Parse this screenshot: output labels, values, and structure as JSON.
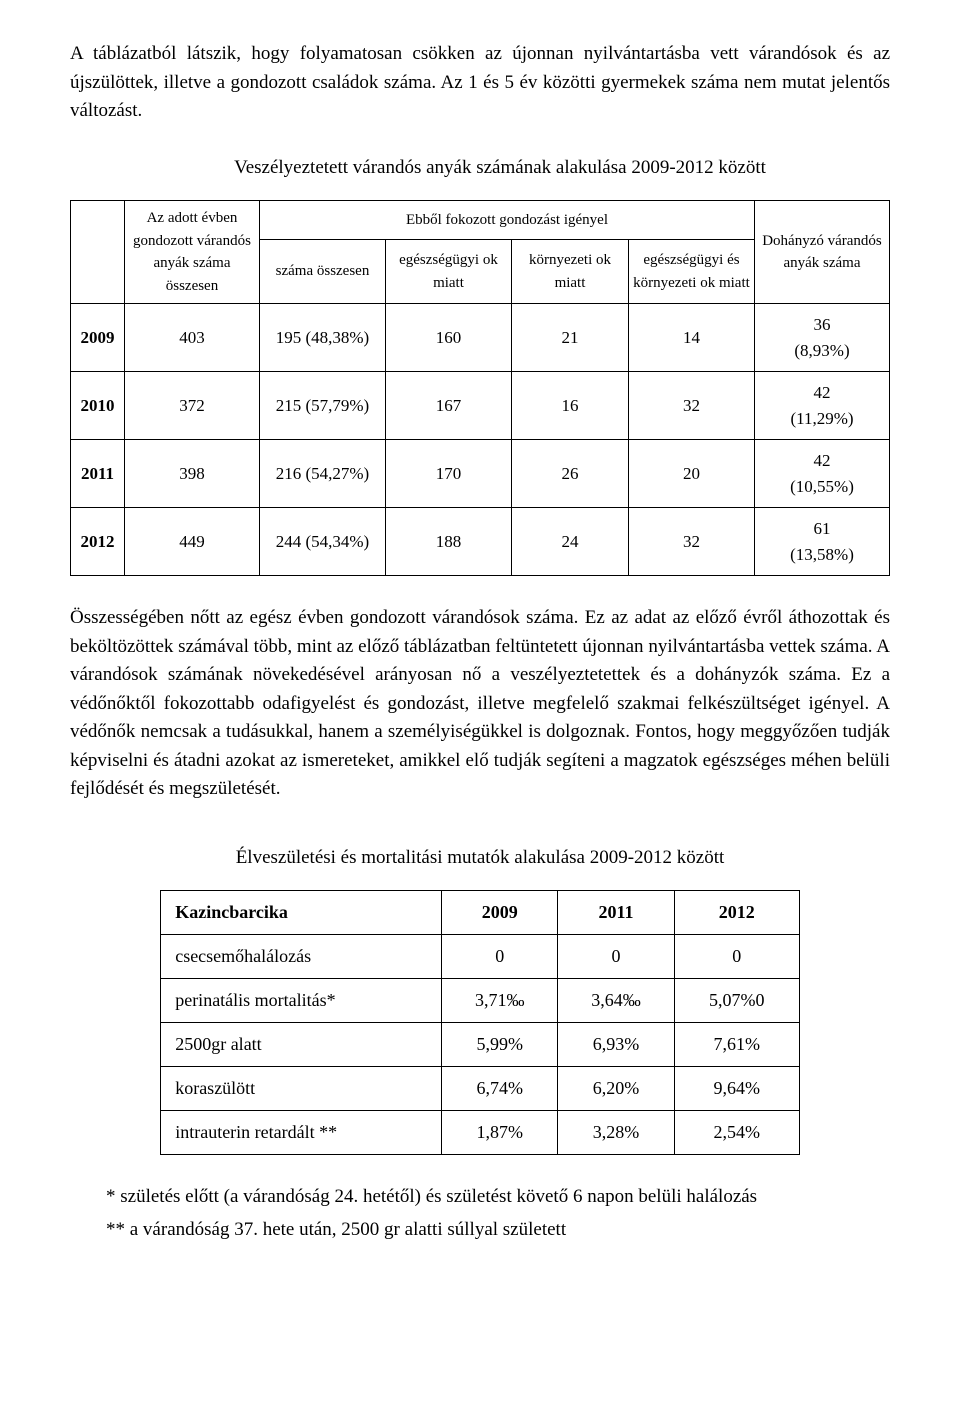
{
  "intro": "A táblázatból látszik, hogy folyamatosan csökken az újonnan nyilvántartásba vett várandósok és az újszülöttek, illetve a gondozott családok száma. Az 1 és 5 év közötti gyermekek száma nem mutat jelentős változást.",
  "table1": {
    "title": "Veszélyeztetett várandós anyák számának alakulása 2009-2012 között",
    "head": {
      "col1": "Az adott évben gondozott várandós anyák száma összesen",
      "group": "Ebből fokozott gondozást igényel",
      "c2": "száma összesen",
      "c3": "egészségügyi ok miatt",
      "c4": "környezeti ok miatt",
      "c5": "egészségügyi és környezeti ok miatt",
      "c6": "Dohányzó várandós anyák száma"
    },
    "rows": [
      {
        "y": "2009",
        "a": "403",
        "b": "195 (48,38%)",
        "c": "160",
        "d": "21",
        "e": "14",
        "f1": "36",
        "f2": "(8,93%)"
      },
      {
        "y": "2010",
        "a": "372",
        "b": "215 (57,79%)",
        "c": "167",
        "d": "16",
        "e": "32",
        "f1": "42",
        "f2": "(11,29%)"
      },
      {
        "y": "2011",
        "a": "398",
        "b": "216 (54,27%)",
        "c": "170",
        "d": "26",
        "e": "20",
        "f1": "42",
        "f2": "(10,55%)"
      },
      {
        "y": "2012",
        "a": "449",
        "b": "244 (54,34%)",
        "c": "188",
        "d": "24",
        "e": "32",
        "f1": "61",
        "f2": "(13,58%)"
      }
    ]
  },
  "middle": "Összességében nőtt az egész évben gondozott várandósok száma. Ez az adat az előző évről áthozottak és beköltözöttek számával több, mint az előző táblázatban feltüntetett újonnan nyilvántartásba vettek száma. A várandósok számának növekedésével arányosan nő a veszélyeztetettek és a dohányzók száma. Ez a védőnőktől fokozottabb odafigyelést és gondozást, illetve megfelelő szakmai felkészültséget igényel. A védőnők nemcsak a tudásukkal, hanem a személyiségükkel is dolgoznak. Fontos, hogy meggyőzően tudják képviselni és átadni azokat az ismereteket, amikkel elő tudják segíteni a magzatok egészséges méhen belüli fejlődését és megszületését.",
  "table2": {
    "title": "Élveszületési és mortalitási mutatók alakulása 2009-2012 között",
    "head": {
      "c0": "Kazincbarcika",
      "c1": "2009",
      "c2": "2011",
      "c3": "2012"
    },
    "rows": [
      {
        "label": "csecsemőhalálozás",
        "a": "0",
        "b": "0",
        "c": "0"
      },
      {
        "label": "perinatális mortalitás*",
        "a": "3,71‰",
        "b": "3,64‰",
        "c": "5,07%0"
      },
      {
        "label": "2500gr alatt",
        "a": "5,99%",
        "b": "6,93%",
        "c": "7,61%"
      },
      {
        "label": "koraszülött",
        "a": "6,74%",
        "b": "6,20%",
        "c": "9,64%"
      },
      {
        "label": "intrauterin retardált **",
        "a": "1,87%",
        "b": "3,28%",
        "c": "2,54%"
      }
    ]
  },
  "notes": {
    "n1": "* születés előtt (a várandóság 24. hetétől) és születést követő 6 napon belüli halálozás",
    "n2": "** a várandóság 37. hete után, 2500 gr alatti súllyal született"
  }
}
